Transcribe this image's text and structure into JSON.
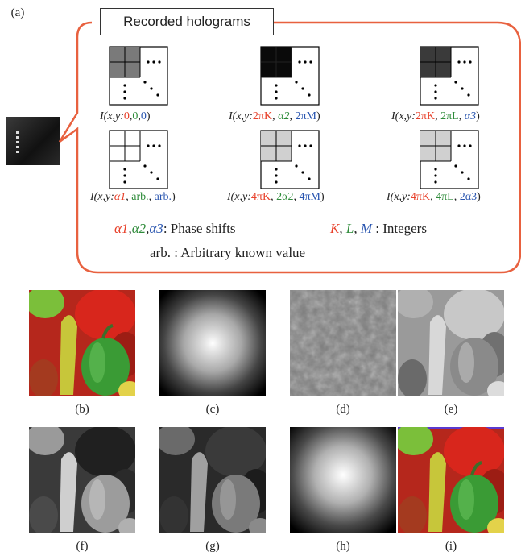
{
  "panel_labels": {
    "a": "(a)",
    "b": "(b)",
    "c": "(c)",
    "d": "(d)",
    "e": "(e)",
    "f": "(f)",
    "g": "(g)",
    "h": "(h)",
    "i": "(i)"
  },
  "holograms_title": "Recorded holograms",
  "formulas": [
    {
      "prefix": "I(x,y:",
      "a": "0",
      "sep1": ",",
      "b": "0",
      "sep2": ",",
      "c": "0",
      "suffix": ")"
    },
    {
      "prefix": "I(x,y:",
      "a": "2πK",
      "sep1": ", ",
      "b": "α2",
      "sep2": ", ",
      "c": "2πM",
      "suffix": ")"
    },
    {
      "prefix": "I(x,y:",
      "a": "2πK",
      "sep1": ", ",
      "b": "2πL",
      "sep2": ", ",
      "c": "α3",
      "suffix": ")"
    },
    {
      "prefix": "I(x,y:",
      "a": "α1",
      "sep1": ", ",
      "b": "arb.",
      "sep2": ", ",
      "c": "arb.",
      "suffix": ")"
    },
    {
      "prefix": "I(x,y:",
      "a": "4πK",
      "sep1": ", ",
      "b": "2α2",
      "sep2": ", ",
      "c": "4πM",
      "suffix": ")"
    },
    {
      "prefix": "I(x,y:",
      "a": "4πK",
      "sep1": ", ",
      "b": "4πL",
      "sep2": ", ",
      "c": "2α3",
      "suffix": ")"
    }
  ],
  "legend": {
    "alpha1": "α1",
    "comma1": ",",
    "alpha2": "α2",
    "comma2": ",",
    "alpha3": "α3",
    "phase_text": ": Phase shifts",
    "K": "K",
    "kc": ", ",
    "L": "L",
    "lc": ", ",
    "M": "M",
    "int_text": " : Integers",
    "arb_text": "arb. : Arbitrary known value"
  },
  "colors": {
    "red": "#e8412b",
    "green": "#2e8b3a",
    "blue": "#2a56b0",
    "callout": "#e8613f"
  }
}
